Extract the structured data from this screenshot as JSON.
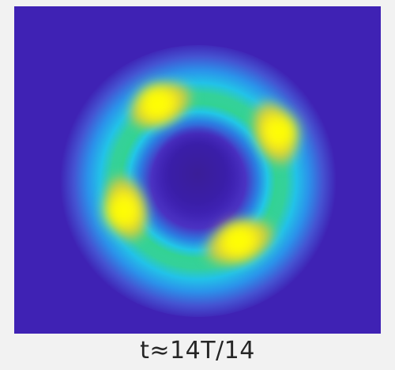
{
  "figure": {
    "caption": "t≈14T/14",
    "colors": {
      "background": "#3f22b4",
      "ring_outer": "#21c4ea",
      "ring_mid": "#34d28e",
      "peak_low": "#e2cf2f",
      "peak_high": "#ffff00"
    }
  }
}
